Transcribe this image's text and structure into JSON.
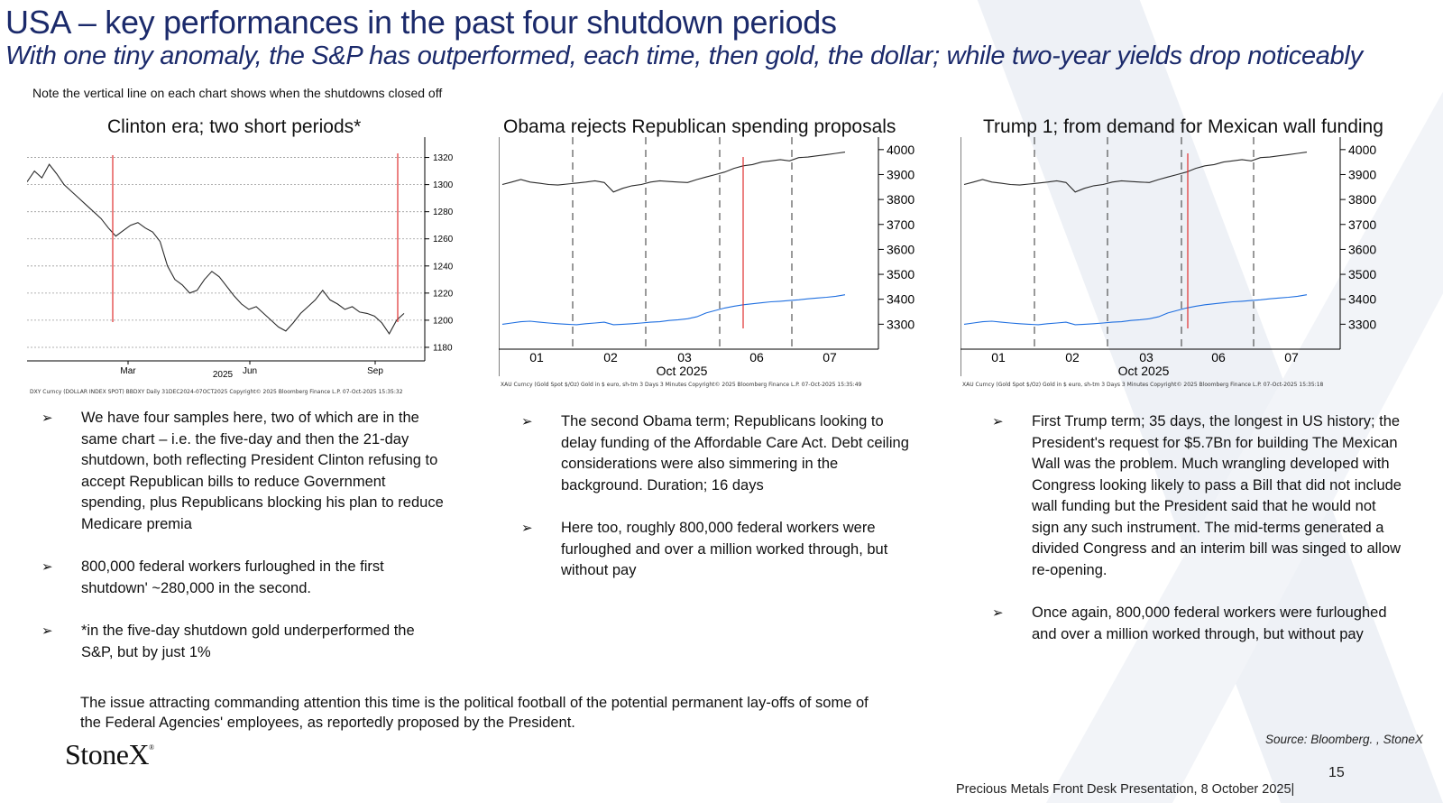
{
  "header": {
    "title": "USA – key performances in the past four shutdown periods",
    "subtitle": "With one tiny anomaly, the S&P has outperformed, each time, then gold, the dollar; while two-year yields drop noticeably",
    "note": "Note the vertical line on each chart shows when the shutdowns closed off"
  },
  "charts": [
    {
      "title": "Clinton era; two short periods*",
      "y_ticks": [
        "1320",
        "1300",
        "1280",
        "1260",
        "1240",
        "1220",
        "1200",
        "1180"
      ],
      "x_ticks": [
        "Mar",
        "Jun",
        "Sep"
      ],
      "x_sub": "2025",
      "source": "DXY Curncy (DOLLAR INDEX SPOT) BBDXY Daily 31DEC2024-07OCT2025   Copyright© 2025 Bloomberg Finance L.P.   07-Oct-2025 15:35:32"
    },
    {
      "title": "Obama rejects Republican spending proposals",
      "y_ticks": [
        "4000",
        "3900",
        "3800",
        "3700",
        "3600",
        "3500",
        "3400",
        "3300"
      ],
      "x_ticks": [
        "01",
        "02",
        "03",
        "06",
        "07"
      ],
      "x_sub": "Oct 2025",
      "source": "XAU Curncy (Gold Spot   $/Oz) Gold in $ euro, sh-tm 3 Days 3 Minutes   Copyright© 2025 Bloomberg Finance L.P.   07-Oct-2025 15:35:49"
    },
    {
      "title": "Trump 1; from demand for Mexican wall funding",
      "y_ticks": [
        "4000",
        "3900",
        "3800",
        "3700",
        "3600",
        "3500",
        "3400",
        "3300"
      ],
      "x_ticks": [
        "01",
        "02",
        "03",
        "06",
        "07"
      ],
      "x_sub": "Oct 2025",
      "source": "XAU Curncy (Gold Spot   $/Oz) Gold in $ euro, sh-tm 3 Days 3 Minutes   Copyright© 2025 Bloomberg Finance L.P.   07-Oct-2025 15:35:18"
    }
  ],
  "columns": [
    {
      "bullets": [
        "We have four samples here, two of which are in the same chart – i.e. the five-day and then the 21-day shutdown, both reflecting President Clinton refusing to accept Republican bills to reduce Government spending, plus Republicans blocking his plan to reduce Medicare premia",
        "800,000 federal workers furloughed in the first shutdown' ~280,000 in the second.",
        "*in the five-day shutdown gold underperformed the S&P, but by just 1%"
      ]
    },
    {
      "bullets": [
        "The second Obama term; Republicans looking to delay funding of the Affordable Care Act.  Debt ceiling considerations were also simmering in the background.  Duration; 16 days",
        "Here too, roughly 800,000 federal workers were furloughed and over a million worked through, but without pay"
      ]
    },
    {
      "bullets": [
        "First Trump term; 35 days, the longest in US history; the President's request for $5.7Bn for building The Mexican Wall was the problem.  Much wrangling developed with Congress looking likely to pass a Bill that did not include wall funding but the President said that he would not sign any such instrument.  The mid-terms generated a divided Congress and an interim bill was singed to allow re-opening.",
        "Once again, 800,000 federal workers were furloughed and over a million worked through, but without pay"
      ]
    }
  ],
  "issue_text": "The issue attracting commanding attention this time is the political football of the potential permanent lay-offs of some of the Federal Agencies' employees, as reportedly proposed by the President.",
  "footer": {
    "logo": "StoneX",
    "source": "Source:  Bloomberg. , StoneX",
    "page_number": "15",
    "presentation": "Precious Metals Front Desk Presentation, 8 October 2025|"
  },
  "colors": {
    "title": "#1b2a6b",
    "marker_line": "#e03030",
    "gold_line": "#2a2a2a",
    "euro_line": "#1f6fe0"
  },
  "chart_data": [
    {
      "type": "line",
      "title": "Clinton era; two short periods*",
      "x_ticks": [
        "Mar",
        "Jun",
        "Sep"
      ],
      "x_sub": "2025",
      "ylim": [
        1170,
        1335
      ],
      "series": [
        {
          "values": [
            1302,
            1310,
            1305,
            1315,
            1308,
            1300,
            1295,
            1290,
            1285,
            1280,
            1275,
            1268,
            1262,
            1266,
            1270,
            1272,
            1268,
            1265,
            1258,
            1240,
            1230,
            1226,
            1220,
            1222,
            1230,
            1236,
            1232,
            1225,
            1218,
            1212,
            1208,
            1210,
            1205,
            1200,
            1195,
            1192,
            1198,
            1205,
            1210,
            1215,
            1222,
            1215,
            1212,
            1208,
            1210,
            1206,
            1205,
            1203,
            1198,
            1190,
            1200,
            1205
          ]
        }
      ]
    },
    {
      "type": "line",
      "title": "Obama rejects Republican spending proposals",
      "x_ticks": [
        "01",
        "02",
        "03",
        "06",
        "07"
      ],
      "x_sub": "Oct 2025",
      "ylim": [
        3200,
        4050
      ],
      "series": [
        {
          "values": [
            3860,
            3870,
            3880,
            3870,
            3865,
            3860,
            3858,
            3862,
            3866,
            3870,
            3875,
            3868,
            3830,
            3845,
            3855,
            3860,
            3870,
            3875,
            3872,
            3870,
            3868,
            3880,
            3890,
            3900,
            3910,
            3925,
            3935,
            3940,
            3950,
            3955,
            3960,
            3955,
            3968,
            3970,
            3975,
            3980,
            3985,
            3990
          ]
        },
        {
          "values": [
            3300,
            3305,
            3310,
            3312,
            3308,
            3305,
            3302,
            3300,
            3298,
            3302,
            3305,
            3308,
            3298,
            3300,
            3302,
            3305,
            3308,
            3310,
            3315,
            3318,
            3322,
            3330,
            3345,
            3355,
            3365,
            3372,
            3378,
            3382,
            3386,
            3390,
            3392,
            3395,
            3398,
            3402,
            3405,
            3408,
            3412,
            3418
          ]
        }
      ]
    },
    {
      "type": "line",
      "title": "Trump 1; from demand for Mexican wall funding",
      "x_ticks": [
        "01",
        "02",
        "03",
        "06",
        "07"
      ],
      "x_sub": "Oct 2025",
      "ylim": [
        3200,
        4050
      ],
      "series": [
        {
          "values": [
            3860,
            3870,
            3880,
            3870,
            3865,
            3860,
            3858,
            3862,
            3866,
            3870,
            3875,
            3868,
            3830,
            3845,
            3855,
            3860,
            3870,
            3875,
            3872,
            3870,
            3868,
            3880,
            3890,
            3900,
            3910,
            3925,
            3935,
            3940,
            3950,
            3955,
            3960,
            3955,
            3968,
            3970,
            3975,
            3980,
            3985,
            3990
          ]
        },
        {
          "values": [
            3300,
            3305,
            3310,
            3312,
            3308,
            3305,
            3302,
            3300,
            3298,
            3302,
            3305,
            3308,
            3298,
            3300,
            3302,
            3305,
            3308,
            3310,
            3315,
            3318,
            3322,
            3330,
            3345,
            3355,
            3365,
            3372,
            3378,
            3382,
            3386,
            3390,
            3392,
            3395,
            3398,
            3402,
            3405,
            3408,
            3412,
            3418
          ]
        }
      ]
    }
  ]
}
